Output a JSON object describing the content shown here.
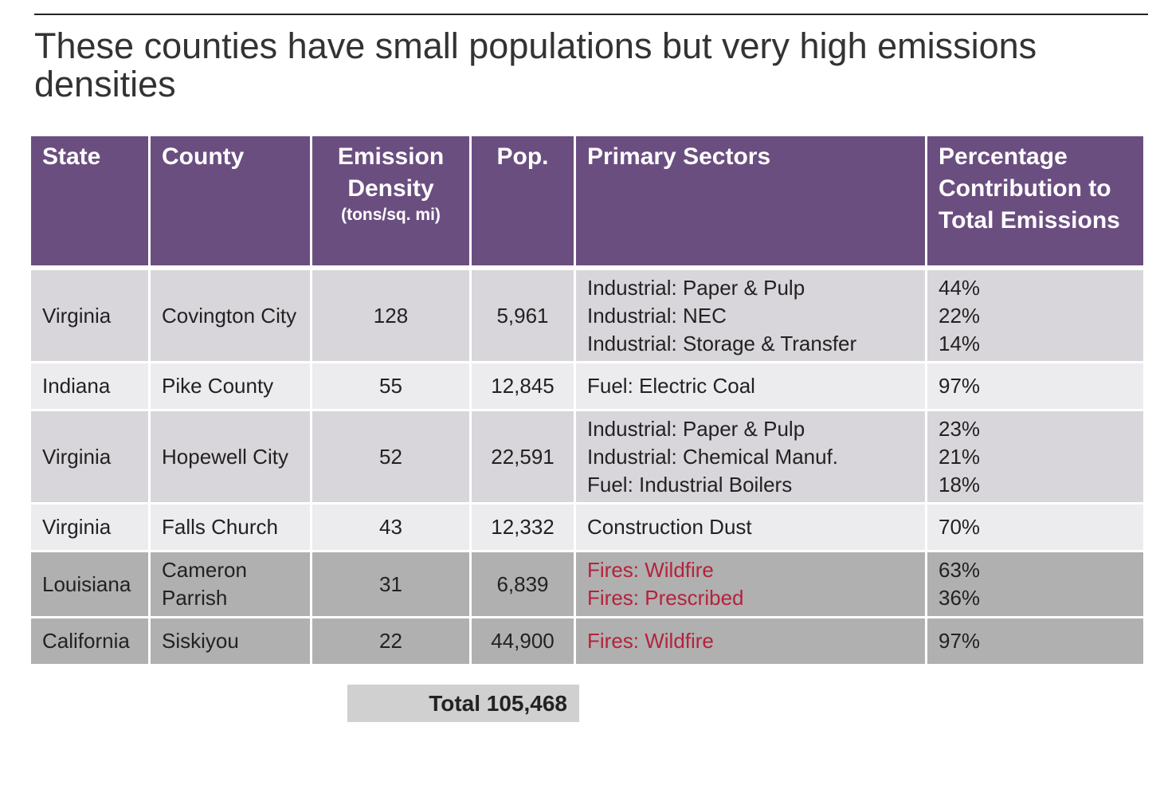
{
  "title": "These counties have small populations but very high emissions densities",
  "headers": {
    "state": "State",
    "county": "County",
    "density": "Emission Density",
    "density_unit": "(tons/sq. mi)",
    "pop": "Pop.",
    "sectors": "Primary Sectors",
    "pct": "Percentage Contribution to Total Emissions"
  },
  "rows": [
    {
      "state": "Virginia",
      "county": "Covington City",
      "density": "128",
      "pop": "5,961",
      "sectors": [
        "Industrial: Paper & Pulp",
        "Industrial: NEC",
        "Industrial: Storage & Transfer"
      ],
      "pct": [
        "44%",
        "22%",
        "14%"
      ]
    },
    {
      "state": "Indiana",
      "county": "Pike County",
      "density": "55",
      "pop": "12,845",
      "sectors": [
        "Fuel: Electric Coal"
      ],
      "pct": [
        "97%"
      ]
    },
    {
      "state": "Virginia",
      "county": "Hopewell City",
      "density": "52",
      "pop": "22,591",
      "sectors": [
        "Industrial: Paper & Pulp",
        "Industrial: Chemical Manuf.",
        "Fuel: Industrial Boilers"
      ],
      "pct": [
        "23%",
        "21%",
        "18%"
      ]
    },
    {
      "state": "Virginia",
      "county": "Falls Church",
      "density": "43",
      "pop": "12,332",
      "sectors": [
        "Construction Dust"
      ],
      "pct": [
        "70%"
      ]
    },
    {
      "state": "Louisiana",
      "county": "Cameron Parrish",
      "density": "31",
      "pop": "6,839",
      "sectors": [
        "Fires: Wildfire",
        "Fires: Prescribed"
      ],
      "pct": [
        "63%",
        "36%"
      ]
    },
    {
      "state": "California",
      "county": "Siskiyou",
      "density": "22",
      "pop": "44,900",
      "sectors": [
        "Fires: Wildfire"
      ],
      "pct": [
        "97%"
      ]
    }
  ],
  "total": "Total 105,468",
  "colors": {
    "header": "#6b4e80",
    "fire_text": "#b5223c",
    "band_dark": "#b0b0b0",
    "band_mid": "#d8d6da",
    "band_light": "#ececee"
  }
}
